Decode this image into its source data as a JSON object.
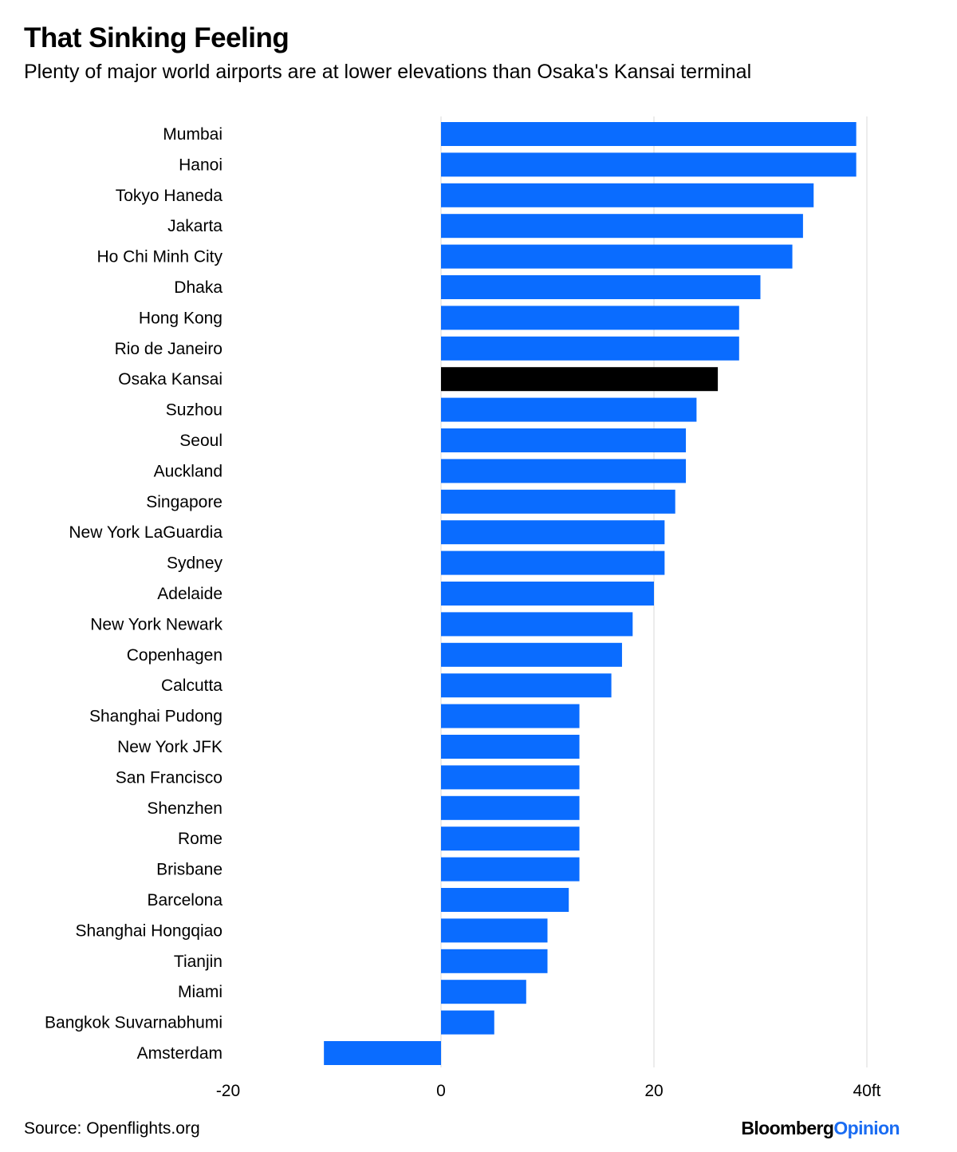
{
  "header": {
    "title": "That Sinking Feeling",
    "subtitle": "Plenty of major world airports are at lower elevations than Osaka's Kansai terminal"
  },
  "footer": {
    "source": "Source: Openflights.org",
    "logo_brand": "Bloomberg",
    "logo_product": "Opinion"
  },
  "chart_data": {
    "type": "bar",
    "orientation": "horizontal",
    "categories": [
      "Mumbai",
      "Hanoi",
      "Tokyo Haneda",
      "Jakarta",
      "Ho Chi Minh City",
      "Dhaka",
      "Hong Kong",
      "Rio de Janeiro",
      "Osaka Kansai",
      "Suzhou",
      "Seoul",
      "Auckland",
      "Singapore",
      "New York LaGuardia",
      "Sydney",
      "Adelaide",
      "New York Newark",
      "Copenhagen",
      "Calcutta",
      "Shanghai Pudong",
      "New York JFK",
      "San Francisco",
      "Shenzhen",
      "Rome",
      "Brisbane",
      "Barcelona",
      "Shanghai Hongqiao",
      "Tianjin",
      "Miami",
      "Bangkok Suvarnabhumi",
      "Amsterdam"
    ],
    "values": [
      39,
      39,
      35,
      34,
      33,
      30,
      28,
      28,
      26,
      24,
      23,
      23,
      22,
      21,
      21,
      20,
      18,
      17,
      16,
      13,
      13,
      13,
      13,
      13,
      13,
      12,
      10,
      10,
      8,
      5,
      -11
    ],
    "highlight": "Osaka Kansai",
    "colors": {
      "default": "#0a6cff",
      "highlight": "#000000",
      "grid": "#e6e6e6"
    },
    "xlim": [
      -20,
      40
    ],
    "xticks": [
      {
        "value": -20,
        "label": "-20"
      },
      {
        "value": 0,
        "label": "0"
      },
      {
        "value": 20,
        "label": "20"
      },
      {
        "value": 40,
        "label": "40ft"
      }
    ],
    "grid": true,
    "legend": "none"
  }
}
